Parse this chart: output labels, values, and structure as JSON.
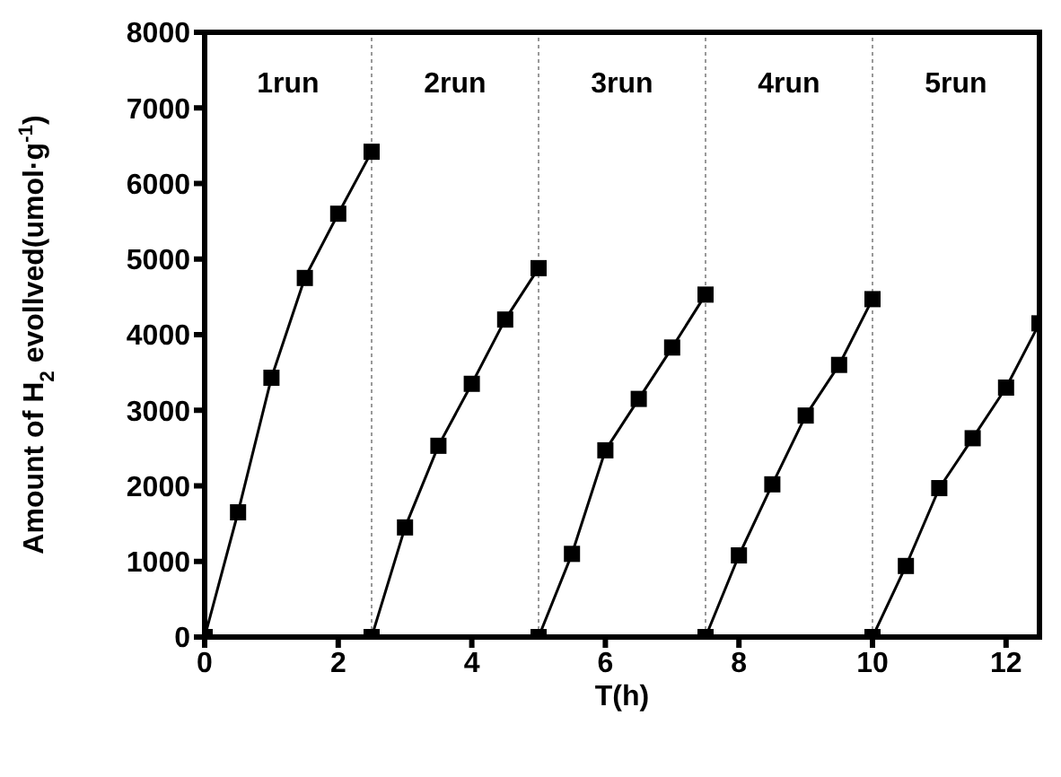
{
  "chart_data": {
    "type": "line",
    "xlabel": "T(h)",
    "ylabel": "Amount of H$_{2}$ evollved(umol·g$^{-1}$)",
    "series": [
      {
        "color": "#000000",
        "x": [
          0,
          0.5,
          1,
          1.5,
          2,
          2.5
        ],
        "values": [
          0,
          1650,
          3430,
          4750,
          5600,
          6420
        ]
      },
      {
        "color": "#000000",
        "x": [
          2.5,
          3,
          3.5,
          4,
          4.5,
          5
        ],
        "values": [
          0,
          1450,
          2530,
          3350,
          4200,
          4880
        ]
      },
      {
        "color": "#000000",
        "x": [
          5,
          5.5,
          6,
          6.5,
          7,
          7.5
        ],
        "values": [
          0,
          1100,
          2470,
          3150,
          3830,
          4530
        ]
      },
      {
        "color": "#000000",
        "x": [
          7.5,
          8,
          8.5,
          9,
          9.5,
          10
        ],
        "values": [
          0,
          1080,
          2020,
          2930,
          3600,
          4470
        ]
      },
      {
        "color": "#000000",
        "x": [
          10,
          10.5,
          11,
          11.5,
          12,
          12.5
        ],
        "values": [
          0,
          940,
          1970,
          2630,
          3300,
          4150
        ]
      }
    ],
    "xlim": [
      0,
      12.5
    ],
    "xticks": [
      0,
      2,
      4,
      6,
      8,
      10,
      12
    ],
    "ylim": [
      0,
      8000
    ],
    "yticks": [
      0,
      1000,
      2000,
      3000,
      4000,
      5000,
      6000,
      7000,
      8000
    ],
    "ref_lines": [
      {
        "axis": "x",
        "value": 2.5,
        "color": "#999999",
        "line_style": "dotted"
      },
      {
        "axis": "x",
        "value": 5,
        "color": "#999999",
        "line_style": "dotted"
      },
      {
        "axis": "x",
        "value": 7.5,
        "color": "#999999",
        "line_style": "dotted"
      },
      {
        "axis": "x",
        "value": 10,
        "color": "#999999",
        "line_style": "dotted"
      }
    ],
    "annotations": [
      "1run",
      "2run",
      "3run",
      "4run",
      "5run"
    ],
    "marker": "square",
    "line_style": "solid"
  }
}
